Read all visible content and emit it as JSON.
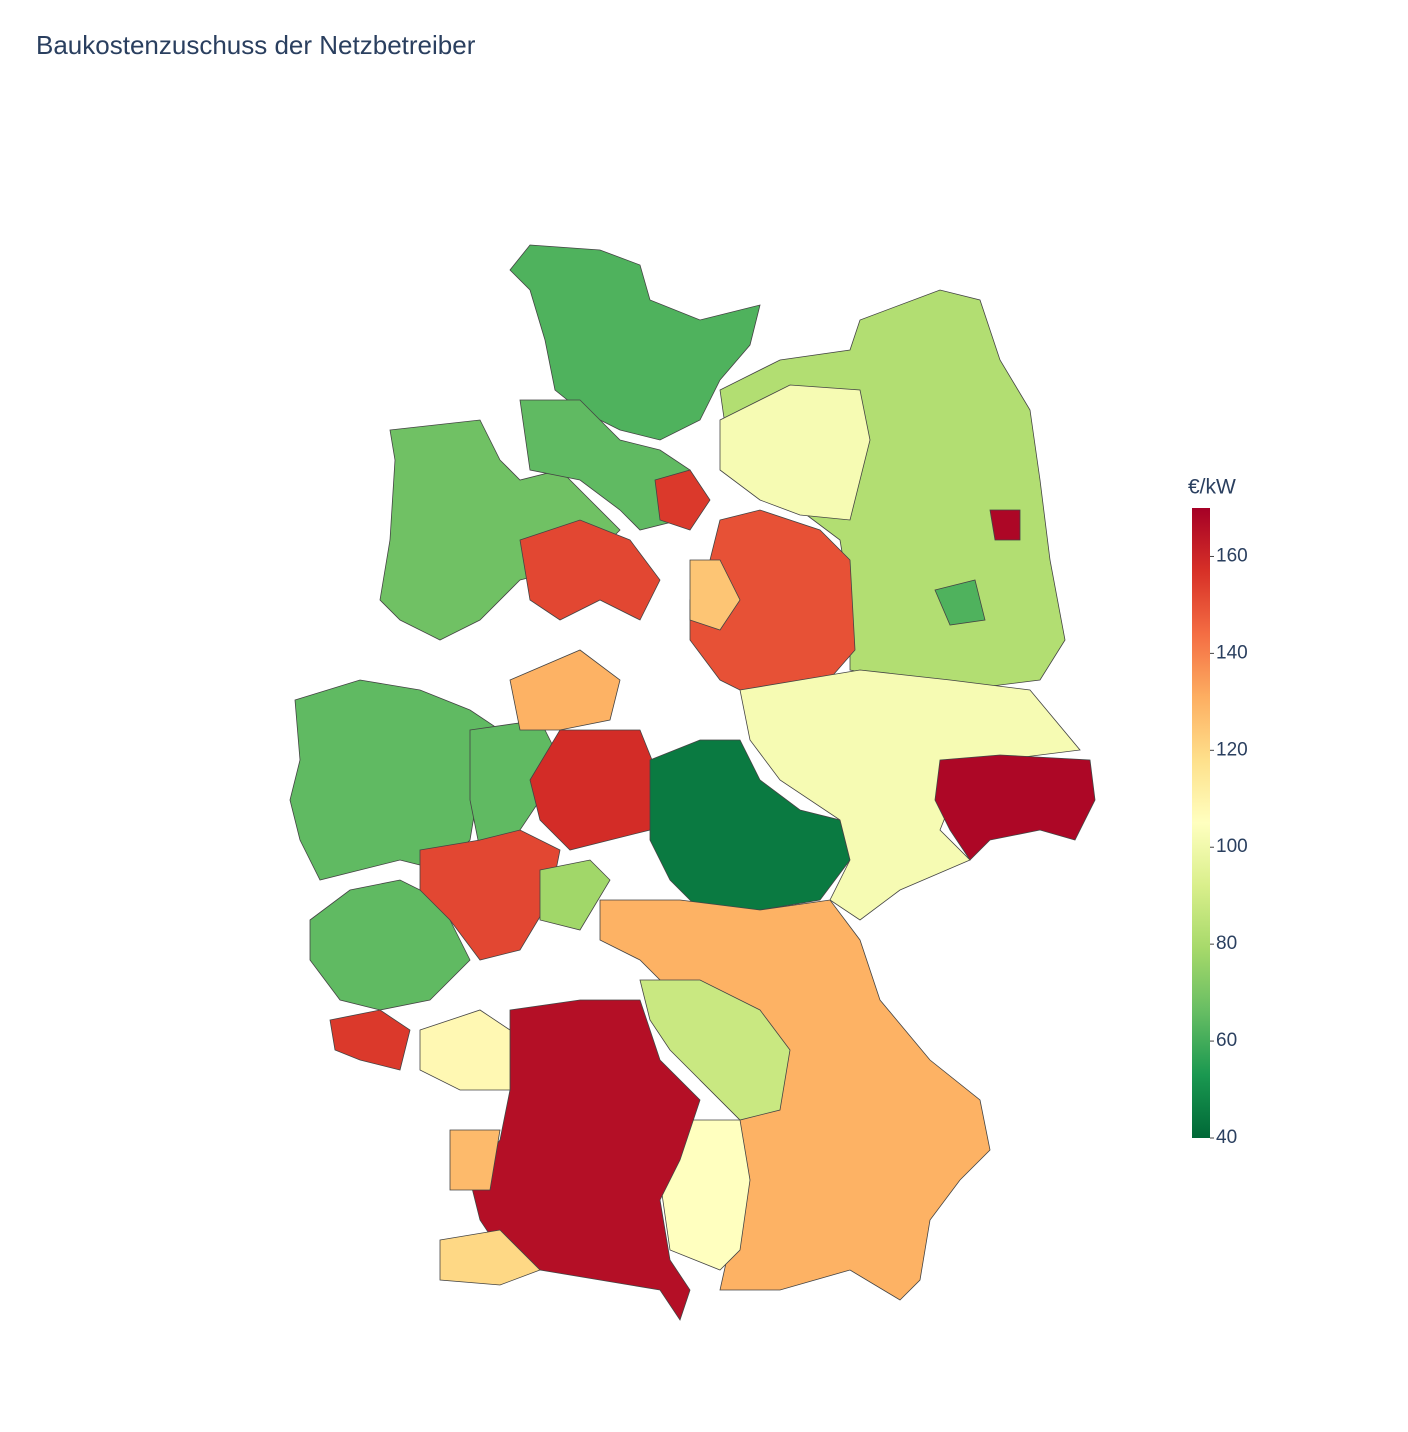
{
  "chart_data": {
    "type": "choropleth",
    "title": "Baukostenzuschuss der Netzbetreiber",
    "colorbar_title": "€/kW",
    "values": [
      62,
      82,
      102,
      68,
      65,
      152,
      150,
      155,
      125,
      65,
      65,
      130,
      158,
      45,
      102,
      168,
      65,
      152,
      78,
      155,
      130,
      88,
      105,
      166,
      108,
      128,
      120,
      62,
      168
    ],
    "zlim": [
      40,
      170
    ],
    "zticks": [
      40,
      60,
      80,
      100,
      120,
      140,
      160
    ],
    "colorscale": [
      "#006837",
      "#1a9850",
      "#66bd63",
      "#a6d96a",
      "#d9ef8b",
      "#ffffbf",
      "#fee08b",
      "#fdae61",
      "#f46d43",
      "#d73027",
      "#a50026"
    ]
  }
}
